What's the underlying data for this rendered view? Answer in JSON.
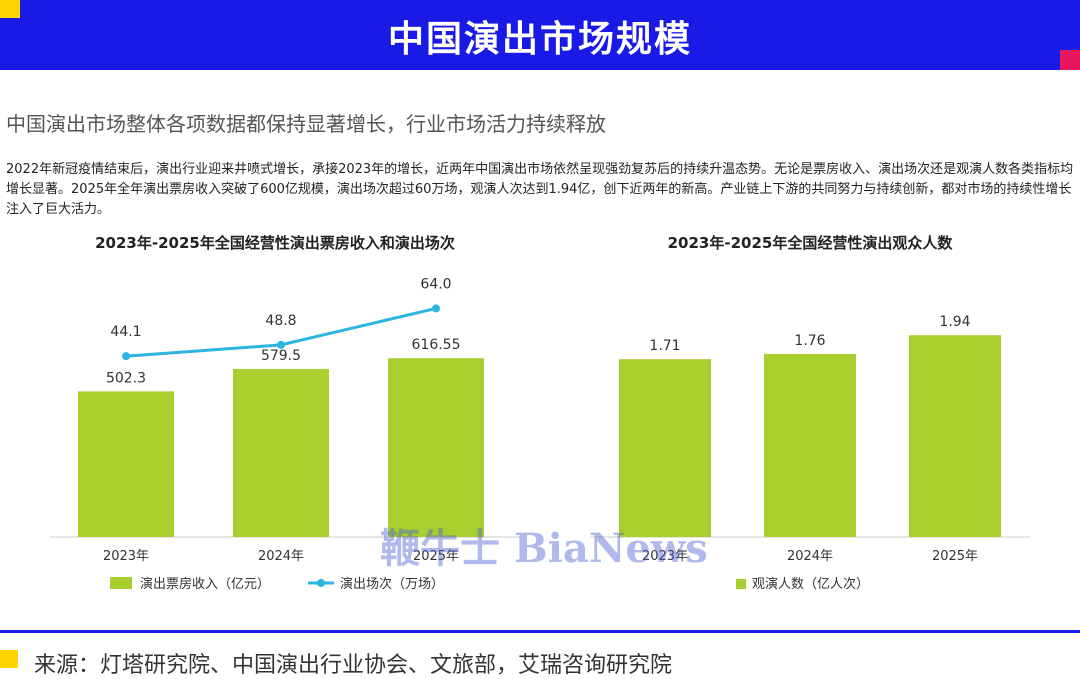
{
  "header": {
    "title": "中国演出市场规模"
  },
  "subtitle": "中国演出市场整体各项数据都保持显著增长，行业市场活力持续释放",
  "paragraph": "2022年新冠疫情结束后，演出行业迎来井喷式增长，承接2023年的增长，近两年中国演出市场依然呈现强劲复苏后的持续升温态势。无论是票房收入、演出场次还是观演人数各类指标均增长显著。2025年全年演出票房收入突破了600亿规模，演出场次超过60万场，观演人次达到1.94亿，创下近两年的新高。产业链上下游的共同努力与持续创新，都对市场的持续性增长注入了巨大活力。",
  "watermark": "鞭牛士 BiaNews",
  "footer": {
    "source": "来源：灯塔研究院、中国演出行业协会、文旅部，艾瑞咨询研究院"
  },
  "colors": {
    "header": "#1a1ae6",
    "bar": "#a8cf2e",
    "line": "#2bb5e0",
    "accent_yellow": "#ffd400",
    "accent_pink": "#e8175d"
  },
  "chart_data": [
    {
      "type": "bar",
      "title": "2023年-2025年全国经营性演出票房收入和演出场次",
      "categories": [
        "2023年",
        "2024年",
        "2025年"
      ],
      "series": [
        {
          "name": "演出票房收入（亿元）",
          "type": "bar",
          "values": [
            502.3,
            579.5,
            616.55
          ],
          "labels": [
            "502.3",
            "579.5",
            "616.55"
          ]
        },
        {
          "name": "演出场次（万场）",
          "type": "line",
          "values": [
            44.1,
            48.8,
            64.0
          ],
          "labels": [
            "44.1",
            "48.8",
            "64.0"
          ]
        }
      ],
      "legend": "bottom"
    },
    {
      "type": "bar",
      "title": "2023年-2025年全国经营性演出观众人数",
      "categories": [
        "2023年",
        "2024年",
        "2025年"
      ],
      "series": [
        {
          "name": "观演人数（亿人次）",
          "values": [
            1.71,
            1.76,
            1.94
          ],
          "labels": [
            "1.71",
            "1.76",
            "1.94"
          ]
        }
      ],
      "legend": "bottom"
    }
  ]
}
